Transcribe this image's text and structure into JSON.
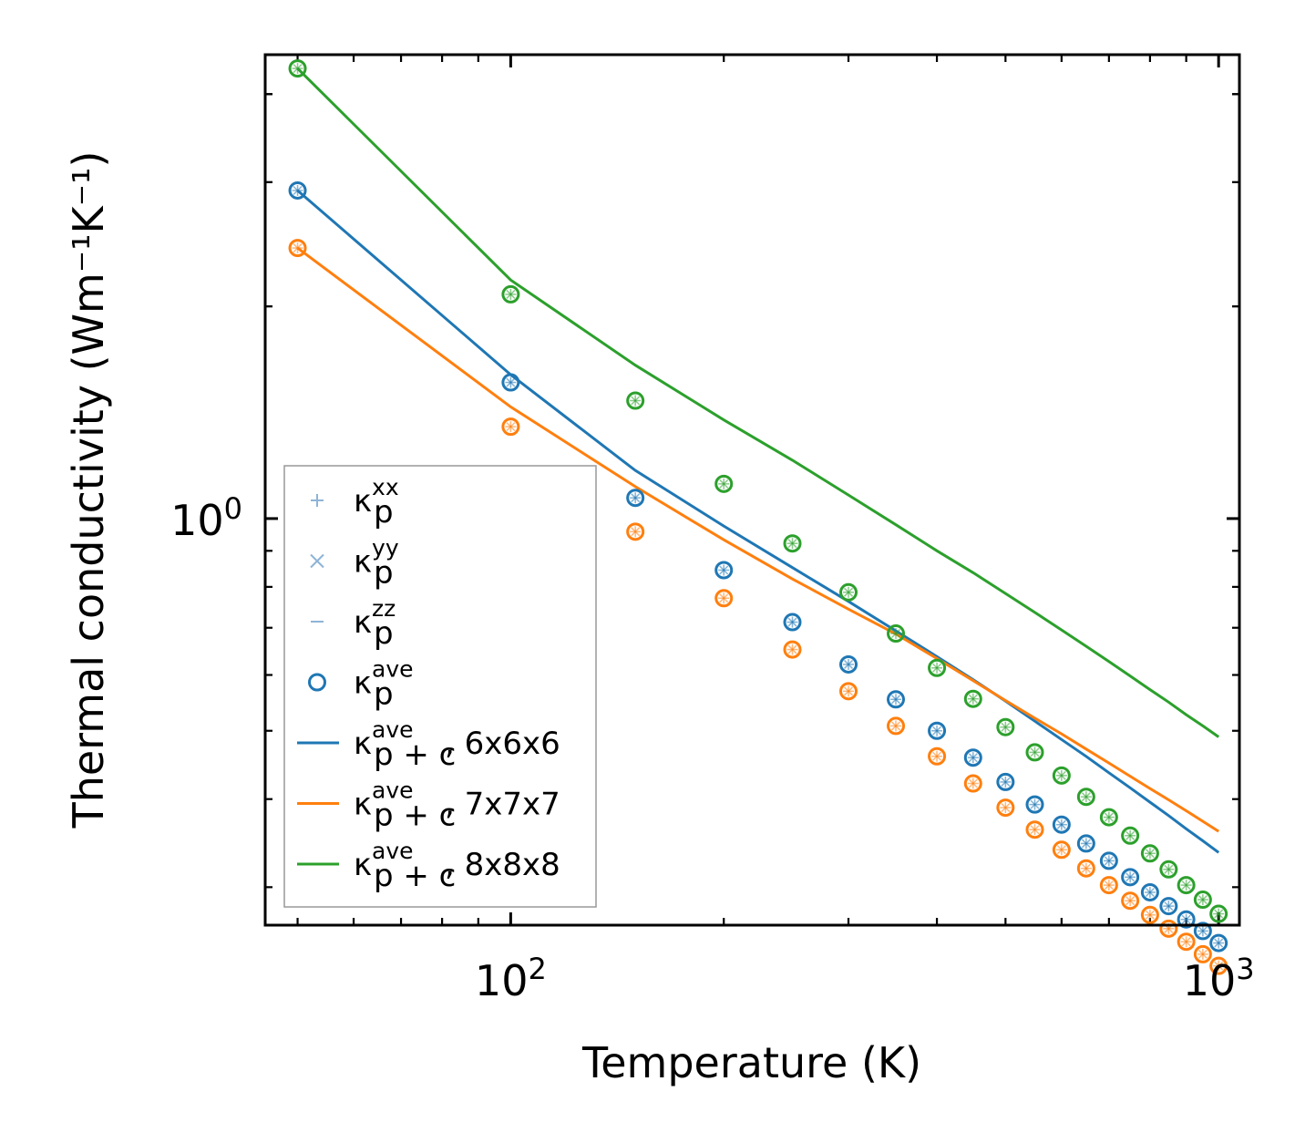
{
  "chart_data": {
    "type": "scatter",
    "xscale": "log",
    "yscale": "log",
    "xlabel": "Temperature (K)",
    "ylabel": "Thermal conductivity (Wm⁻¹K⁻¹)",
    "xlim": [
      45,
      1070
    ],
    "ylim": [
      0.265,
      4.55
    ],
    "x_ticks": [
      {
        "value": 100,
        "base": "10",
        "exp": "2"
      },
      {
        "value": 1000,
        "base": "10",
        "exp": "3"
      }
    ],
    "y_ticks": [
      {
        "value": 1,
        "base": "10",
        "exp": "0"
      }
    ],
    "x": [
      50,
      100,
      150,
      200,
      250,
      300,
      350,
      400,
      450,
      500,
      550,
      600,
      650,
      700,
      750,
      800,
      850,
      900,
      950,
      1000
    ],
    "series": [
      {
        "name": "κ_p^ave (6x6x6)",
        "color": "#1f77b4",
        "kind": "markers",
        "values": [
          2.92,
          1.56,
          1.07,
          0.845,
          0.713,
          0.621,
          0.554,
          0.5,
          0.458,
          0.423,
          0.393,
          0.368,
          0.346,
          0.327,
          0.31,
          0.295,
          0.282,
          0.27,
          0.26,
          0.25
        ]
      },
      {
        "name": "κ_p^ave (7x7x7)",
        "color": "#ff7f0e",
        "kind": "markers",
        "values": [
          2.42,
          1.35,
          0.958,
          0.771,
          0.652,
          0.569,
          0.508,
          0.46,
          0.421,
          0.389,
          0.362,
          0.339,
          0.319,
          0.302,
          0.287,
          0.274,
          0.262,
          0.251,
          0.241,
          0.232
        ]
      },
      {
        "name": "κ_p^ave (8x8x8)",
        "color": "#2ca02c",
        "kind": "markers",
        "values": [
          4.35,
          2.08,
          1.47,
          1.12,
          0.922,
          0.786,
          0.687,
          0.614,
          0.555,
          0.506,
          0.466,
          0.432,
          0.403,
          0.377,
          0.355,
          0.335,
          0.318,
          0.302,
          0.288,
          0.275
        ]
      },
      {
        "name": "κ_p+c^ave, 6x6x6",
        "color": "#1f77b4",
        "kind": "line",
        "values": [
          2.92,
          1.6,
          1.17,
          0.976,
          0.852,
          0.763,
          0.693,
          0.637,
          0.591,
          0.551,
          0.516,
          0.486,
          0.46,
          0.436,
          0.415,
          0.396,
          0.379,
          0.363,
          0.349,
          0.336
        ]
      },
      {
        "name": "κ_p+c^ave, 7x7x7",
        "color": "#ff7f0e",
        "kind": "line",
        "values": [
          2.42,
          1.44,
          1.11,
          0.933,
          0.821,
          0.744,
          0.686,
          0.633,
          0.589,
          0.552,
          0.521,
          0.495,
          0.471,
          0.45,
          0.431,
          0.414,
          0.399,
          0.385,
          0.372,
          0.36
        ]
      },
      {
        "name": "κ_p+c^ave, 8x8x8",
        "color": "#2ca02c",
        "kind": "line",
        "values": [
          4.35,
          2.18,
          1.65,
          1.38,
          1.21,
          1.08,
          0.98,
          0.9,
          0.838,
          0.783,
          0.736,
          0.695,
          0.659,
          0.627,
          0.598,
          0.572,
          0.549,
          0.527,
          0.508,
          0.49
        ]
      }
    ],
    "legend": {
      "position": "lower-left",
      "entries": [
        {
          "symbol": "plus",
          "color": "#8fb4d6",
          "base": "κ",
          "sub": "p",
          "sup": "xx",
          "suffix": ""
        },
        {
          "symbol": "cross",
          "color": "#8fb4d6",
          "base": "κ",
          "sub": "p",
          "sup": "yy",
          "suffix": ""
        },
        {
          "symbol": "dash",
          "color": "#8fb4d6",
          "base": "κ",
          "sub": "p",
          "sup": "zz",
          "suffix": ""
        },
        {
          "symbol": "circle",
          "color": "#1f77b4",
          "base": "κ",
          "sub": "p",
          "sup": "ave",
          "suffix": ""
        },
        {
          "symbol": "line",
          "color": "#1f77b4",
          "base": "κ",
          "sub": "p + c",
          "sup": "ave",
          "suffix": ", 6x6x6"
        },
        {
          "symbol": "line",
          "color": "#ff7f0e",
          "base": "κ",
          "sub": "p + c",
          "sup": "ave",
          "suffix": ", 7x7x7"
        },
        {
          "symbol": "line",
          "color": "#2ca02c",
          "base": "κ",
          "sub": "p + c",
          "sup": "ave",
          "suffix": ", 8x8x8"
        }
      ]
    }
  }
}
